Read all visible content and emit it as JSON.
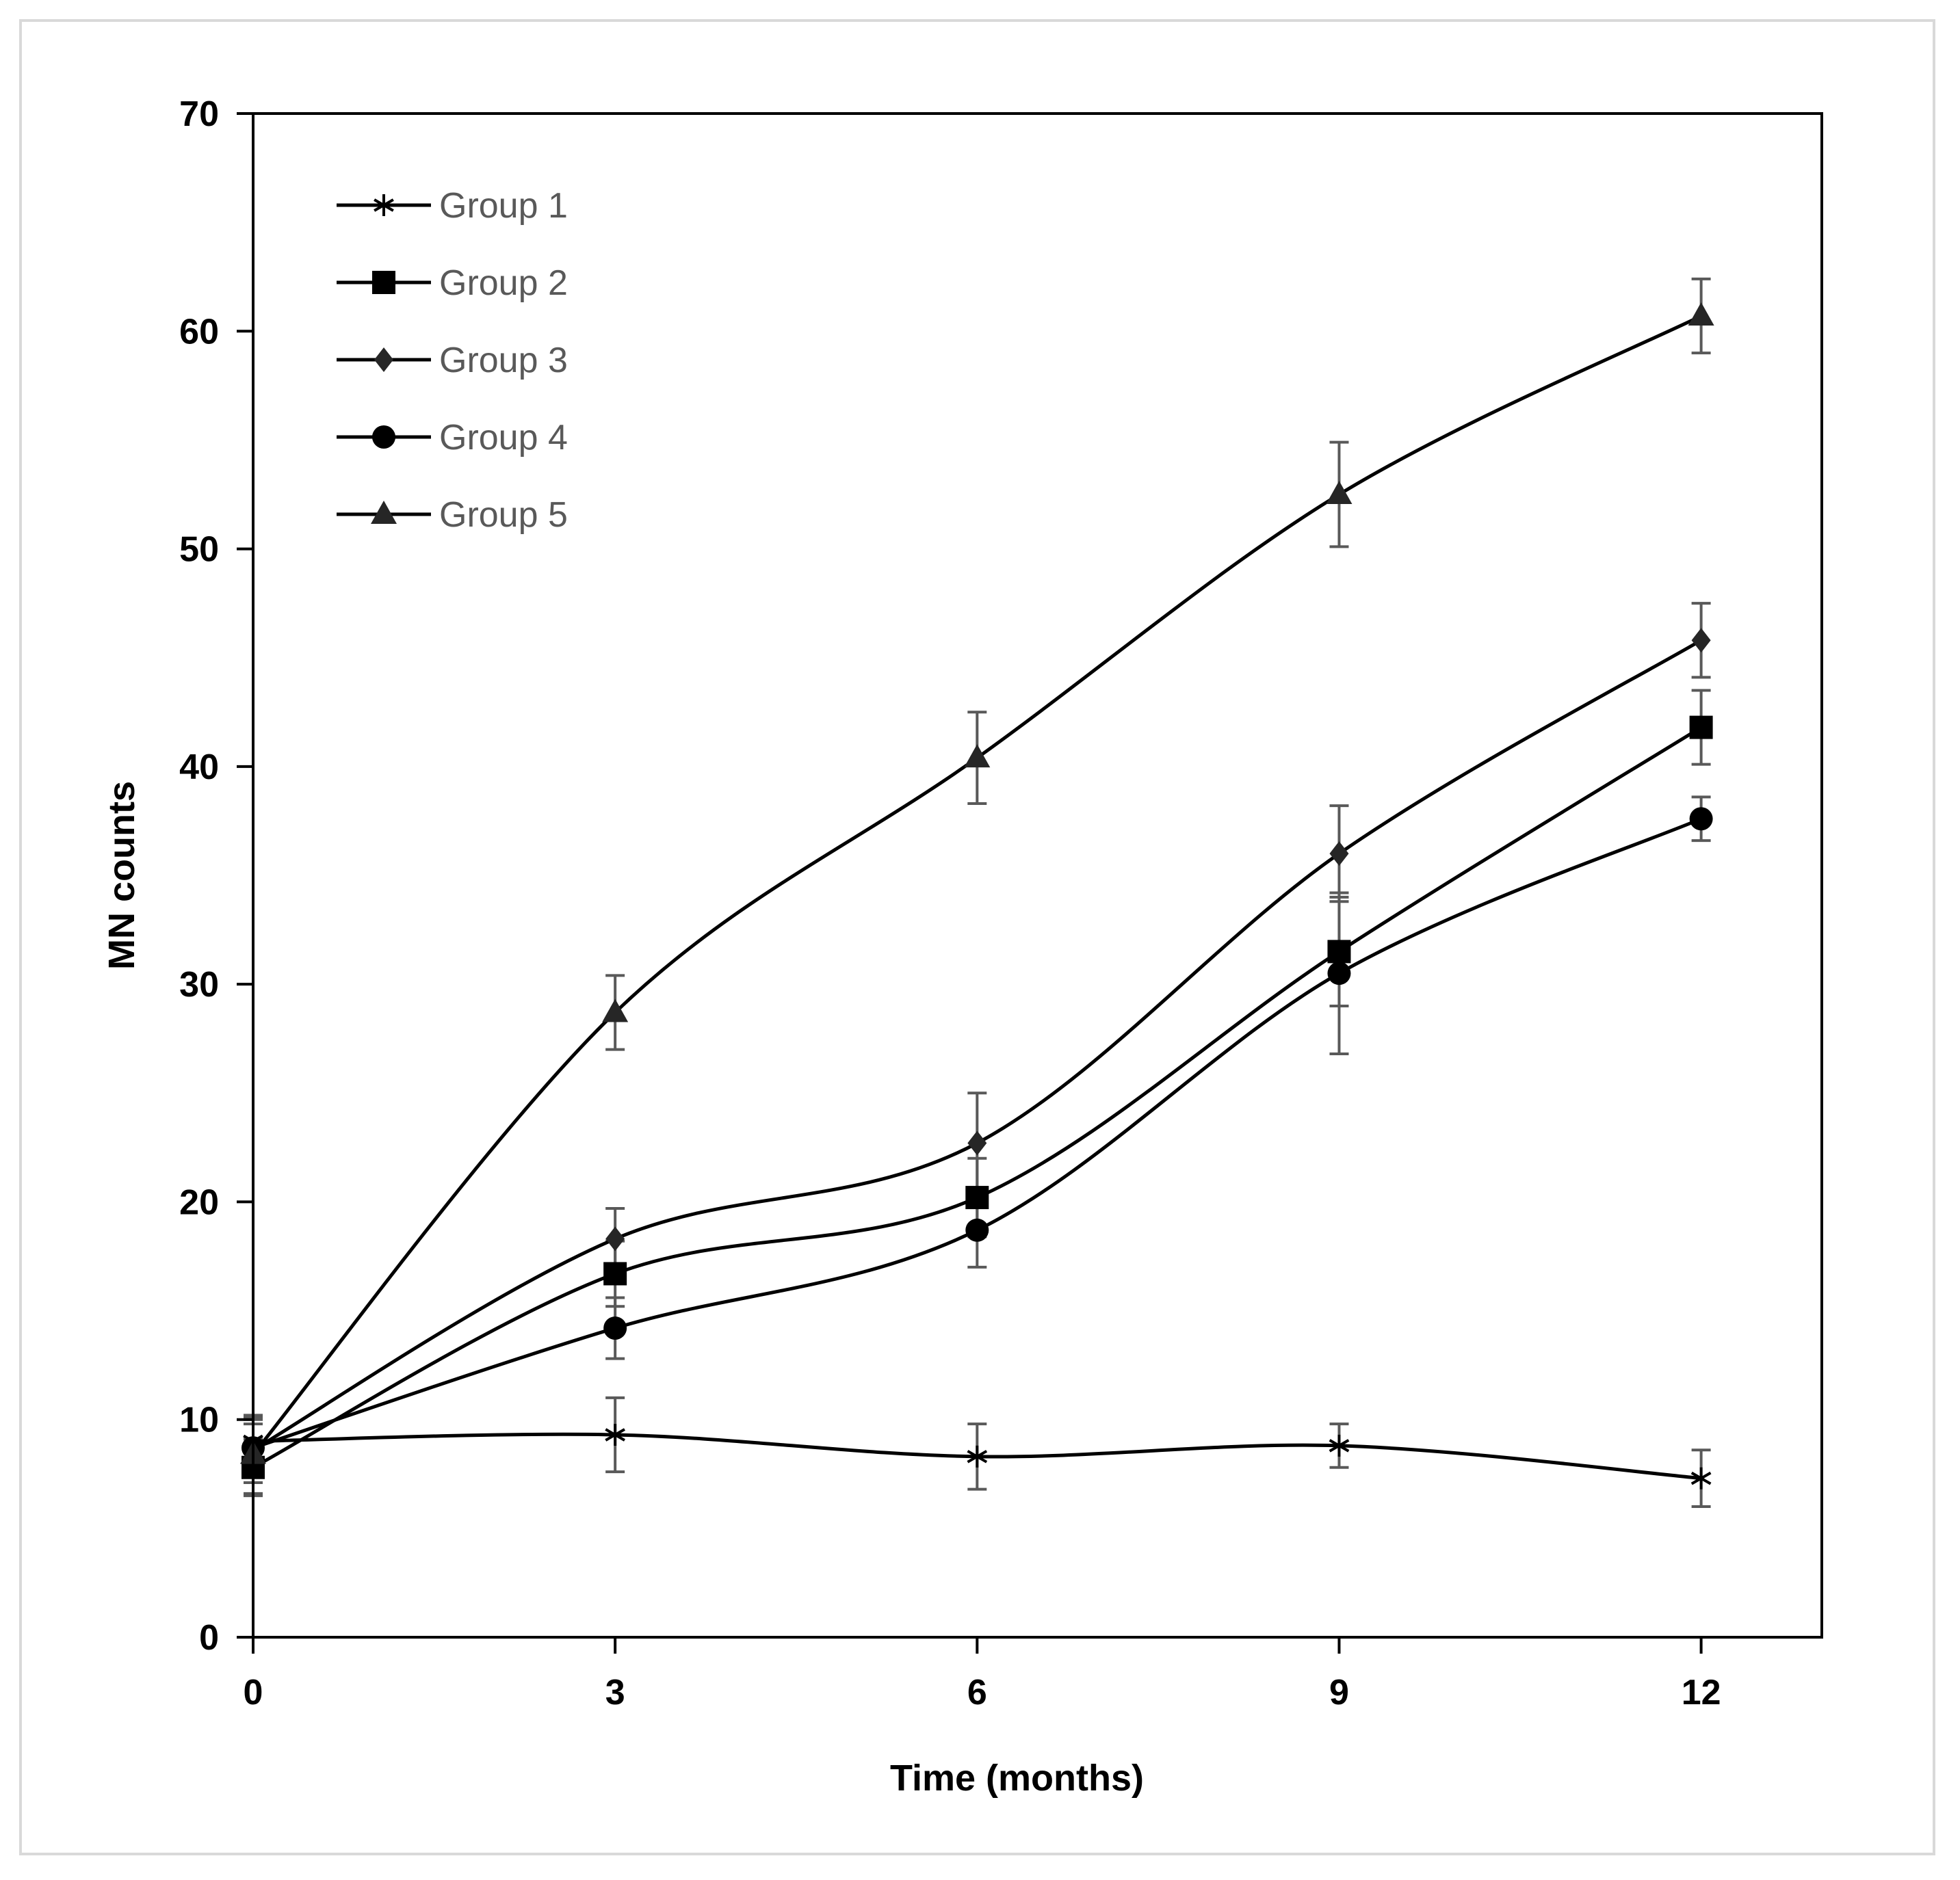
{
  "chart_data": {
    "type": "line",
    "title": "",
    "xlabel": "Time (months)",
    "ylabel": "MN counts",
    "x": [
      0,
      3,
      6,
      9,
      12
    ],
    "xticks": [
      "0",
      "3",
      "6",
      "9",
      "12"
    ],
    "yticks": [
      "0",
      "10",
      "20",
      "30",
      "40",
      "50",
      "60",
      "70"
    ],
    "xlim": [
      0,
      13
    ],
    "ylim": [
      0,
      70
    ],
    "grid": false,
    "legend_position": "top-left",
    "line_color": "#000000",
    "errorbar_color": "#595959",
    "series": [
      {
        "name": "Group 1",
        "marker": "asterisk",
        "values": [
          9.0,
          9.3,
          8.3,
          8.8,
          7.3
        ],
        "errors": [
          1.0,
          1.7,
          1.5,
          1.0,
          1.3
        ]
      },
      {
        "name": "Group 2",
        "marker": "square",
        "values": [
          7.8,
          16.7,
          20.2,
          31.5,
          41.8
        ],
        "errors": [
          1.3,
          1.5,
          1.8,
          2.5,
          1.7
        ]
      },
      {
        "name": "Group 3",
        "marker": "diamond",
        "values": [
          8.6,
          18.3,
          22.7,
          36.0,
          45.8
        ],
        "errors": [
          1.5,
          1.4,
          2.3,
          2.2,
          1.7
        ]
      },
      {
        "name": "Group 4",
        "marker": "circle",
        "values": [
          8.7,
          14.2,
          18.7,
          30.5,
          37.6
        ],
        "errors": [
          1.1,
          1.4,
          1.7,
          3.7,
          1.0
        ]
      },
      {
        "name": "Group 5",
        "marker": "triangle",
        "values": [
          8.4,
          28.7,
          40.4,
          52.5,
          60.7
        ],
        "errors": [
          1.8,
          1.7,
          2.1,
          2.4,
          1.7
        ]
      }
    ]
  }
}
